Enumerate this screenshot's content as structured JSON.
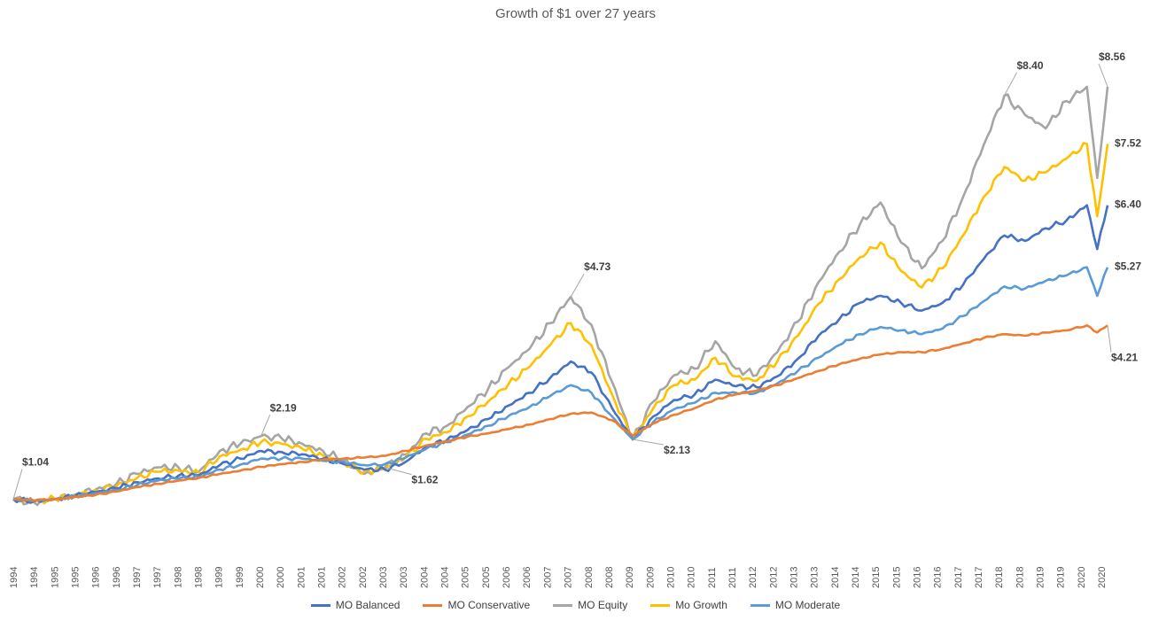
{
  "chart_data": {
    "type": "line",
    "title": "Growth of $1 over 27 years",
    "xlabel": "",
    "ylabel": "",
    "grid": false,
    "legend_position": "bottom",
    "x_tick_labels": [
      "1994",
      "1994",
      "1995",
      "1995",
      "1996",
      "1996",
      "1997",
      "1997",
      "1998",
      "1998",
      "1999",
      "1999",
      "2000",
      "2000",
      "2001",
      "2001",
      "2002",
      "2002",
      "2003",
      "2003",
      "2004",
      "2004",
      "2005",
      "2005",
      "2006",
      "2006",
      "2007",
      "2007",
      "2008",
      "2008",
      "2009",
      "2009",
      "2010",
      "2010",
      "2011",
      "2011",
      "2012",
      "2012",
      "2013",
      "2013",
      "2014",
      "2014",
      "2015",
      "2015",
      "2016",
      "2016",
      "2017",
      "2017",
      "2018",
      "2018",
      "2019",
      "2019",
      "2020",
      "2020"
    ],
    "x": [
      1994.0,
      1994.5,
      1995.0,
      1995.5,
      1996.0,
      1996.5,
      1997.0,
      1997.5,
      1998.0,
      1998.5,
      1999.0,
      1999.5,
      2000.0,
      2000.5,
      2001.0,
      2001.5,
      2002.0,
      2002.5,
      2003.0,
      2003.5,
      2004.0,
      2004.5,
      2005.0,
      2005.5,
      2006.0,
      2006.5,
      2007.0,
      2007.5,
      2008.0,
      2008.5,
      2009.0,
      2009.5,
      2010.0,
      2010.5,
      2011.0,
      2011.5,
      2012.0,
      2012.5,
      2013.0,
      2013.5,
      2014.0,
      2014.5,
      2015.0,
      2015.5,
      2016.0,
      2016.5,
      2017.0,
      2017.5,
      2018.0,
      2018.5,
      2019.0,
      2019.5,
      2020.0,
      2020.25,
      2020.5
    ],
    "series": [
      {
        "name": "MO Balanced",
        "color": "#4472C4",
        "values": [
          1.04,
          1.0,
          1.04,
          1.1,
          1.17,
          1.24,
          1.35,
          1.42,
          1.47,
          1.48,
          1.66,
          1.78,
          1.92,
          1.9,
          1.86,
          1.78,
          1.68,
          1.58,
          1.58,
          1.72,
          2.0,
          2.12,
          2.3,
          2.5,
          2.75,
          2.98,
          3.25,
          3.55,
          3.35,
          2.7,
          2.13,
          2.55,
          2.85,
          2.95,
          3.22,
          3.1,
          3.08,
          3.28,
          3.6,
          4.02,
          4.32,
          4.62,
          4.75,
          4.62,
          4.48,
          4.62,
          4.95,
          5.42,
          5.85,
          5.75,
          5.98,
          6.12,
          6.4,
          5.6,
          6.4
        ]
      },
      {
        "name": "MO Conservative",
        "color": "#ED7D31",
        "values": [
          1.04,
          1.02,
          1.04,
          1.08,
          1.12,
          1.18,
          1.26,
          1.32,
          1.38,
          1.43,
          1.5,
          1.56,
          1.63,
          1.68,
          1.72,
          1.76,
          1.78,
          1.8,
          1.83,
          1.92,
          2.02,
          2.1,
          2.18,
          2.24,
          2.32,
          2.4,
          2.5,
          2.6,
          2.62,
          2.48,
          2.2,
          2.42,
          2.58,
          2.7,
          2.86,
          2.95,
          3.02,
          3.12,
          3.25,
          3.38,
          3.5,
          3.6,
          3.68,
          3.72,
          3.72,
          3.78,
          3.88,
          3.98,
          4.05,
          4.02,
          4.08,
          4.12,
          4.21,
          4.08,
          4.21
        ]
      },
      {
        "name": "MO Equity",
        "color": "#A5A5A5",
        "values": [
          1.04,
          0.98,
          1.05,
          1.13,
          1.22,
          1.32,
          1.5,
          1.62,
          1.62,
          1.55,
          1.92,
          2.05,
          2.19,
          2.15,
          2.05,
          1.92,
          1.74,
          1.5,
          1.62,
          1.85,
          2.24,
          2.38,
          2.72,
          3.05,
          3.45,
          3.78,
          4.25,
          4.73,
          4.22,
          3.18,
          2.13,
          2.82,
          3.3,
          3.42,
          3.92,
          3.42,
          3.3,
          3.72,
          4.28,
          5.0,
          5.55,
          6.05,
          6.45,
          5.72,
          5.25,
          5.75,
          6.55,
          7.5,
          8.4,
          8.05,
          7.8,
          8.3,
          8.56,
          6.9,
          8.56
        ]
      },
      {
        "name": "Mo Growth",
        "color": "#FFC000",
        "values": [
          1.04,
          0.99,
          1.05,
          1.12,
          1.2,
          1.28,
          1.43,
          1.54,
          1.56,
          1.52,
          1.82,
          1.94,
          2.08,
          2.05,
          1.96,
          1.84,
          1.7,
          1.54,
          1.6,
          1.8,
          2.14,
          2.26,
          2.55,
          2.82,
          3.15,
          3.45,
          3.85,
          4.25,
          3.85,
          2.95,
          2.13,
          2.7,
          3.12,
          3.22,
          3.62,
          3.28,
          3.2,
          3.55,
          4.02,
          4.6,
          5.05,
          5.45,
          5.72,
          5.2,
          4.9,
          5.25,
          5.85,
          6.55,
          7.1,
          6.85,
          7.0,
          7.25,
          7.52,
          6.2,
          7.52
        ]
      },
      {
        "name": "MO Moderate",
        "color": "#5B9BD5",
        "values": [
          1.04,
          1.01,
          1.04,
          1.09,
          1.15,
          1.21,
          1.3,
          1.38,
          1.42,
          1.45,
          1.58,
          1.67,
          1.78,
          1.78,
          1.78,
          1.74,
          1.72,
          1.66,
          1.68,
          1.8,
          1.96,
          2.08,
          2.22,
          2.38,
          2.56,
          2.72,
          2.92,
          3.12,
          2.98,
          2.55,
          2.13,
          2.45,
          2.68,
          2.8,
          2.98,
          2.98,
          2.98,
          3.15,
          3.38,
          3.62,
          3.85,
          4.05,
          4.18,
          4.12,
          4.05,
          4.15,
          4.38,
          4.65,
          4.92,
          4.88,
          5.02,
          5.12,
          5.27,
          4.75,
          5.27
        ]
      }
    ],
    "annotations": [
      {
        "text": "$1.04",
        "x": 1994.0,
        "y": 1.04
      },
      {
        "text": "$2.19",
        "x": 2000.0,
        "y": 2.19
      },
      {
        "text": "$1.62",
        "x": 2003.0,
        "y": 1.62
      },
      {
        "text": "$4.73",
        "x": 2007.5,
        "y": 4.73
      },
      {
        "text": "$2.13",
        "x": 2009.0,
        "y": 2.13
      },
      {
        "text": "$8.40",
        "x": 2018.0,
        "y": 8.4
      },
      {
        "text": "$8.56",
        "x": 2020.5,
        "y": 8.56
      },
      {
        "text": "$7.52",
        "x": 2020.5,
        "y": 7.52
      },
      {
        "text": "$6.40",
        "x": 2020.5,
        "y": 6.4
      },
      {
        "text": "$5.27",
        "x": 2020.5,
        "y": 5.27
      },
      {
        "text": "$4.21",
        "x": 2020.5,
        "y": 4.21
      }
    ]
  }
}
